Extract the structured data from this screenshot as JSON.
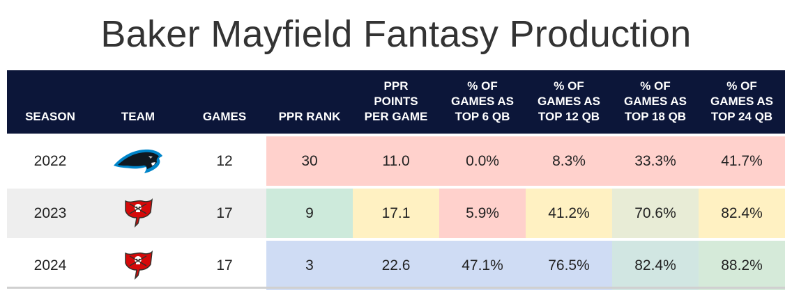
{
  "title": "Baker Mayfield Fantasy Production",
  "headers": [
    "SEASON",
    "TEAM",
    "GAMES",
    "PPR RANK",
    "PPR\nPOINTS\nPER GAME",
    "% OF\nGAMES AS\nTOP 6 QB",
    "% OF\nGAMES AS\nTOP 12 QB",
    "% OF\nGAMES AS\nTOP 18 QB",
    "% OF\nGAMES AS\nTOP 24 QB"
  ],
  "rows": [
    {
      "season": "2022",
      "team_icon": "panthers-logo-icon",
      "games": "12",
      "ppr_rank": "30",
      "ppg": "11.0",
      "top6": "0.0%",
      "top12": "8.3%",
      "top18": "33.3%",
      "top24": "41.7%",
      "row_bg": "#ffffff",
      "colors": [
        "#ffd1cc",
        "#ffd1cc",
        "#ffd1cc",
        "#ffd1cc",
        "#ffd1cc",
        "#ffd1cc"
      ]
    },
    {
      "season": "2023",
      "team_icon": "buccaneers-flag-icon",
      "games": "17",
      "ppr_rank": "9",
      "ppg": "17.1",
      "top6": "5.9%",
      "top12": "41.2%",
      "top18": "70.6%",
      "top24": "82.4%",
      "row_bg": "#eeeeee",
      "colors": [
        "#cdeadb",
        "#fff1c2",
        "#ffd1cc",
        "#fff1c2",
        "#e8ecd6",
        "#fff1c2"
      ]
    },
    {
      "season": "2024",
      "team_icon": "buccaneers-flag-icon",
      "games": "17",
      "ppr_rank": "3",
      "ppg": "22.6",
      "top6": "47.1%",
      "top12": "76.5%",
      "top18": "82.4%",
      "top24": "88.2%",
      "row_bg": "#ffffff",
      "colors": [
        "#cfdcf4",
        "#cfdcf4",
        "#cfdcf4",
        "#cfdcf4",
        "#d1e6e2",
        "#d5ead9"
      ]
    }
  ],
  "colors": {
    "header_bg": "#0c1639",
    "title_text": "#333333"
  }
}
